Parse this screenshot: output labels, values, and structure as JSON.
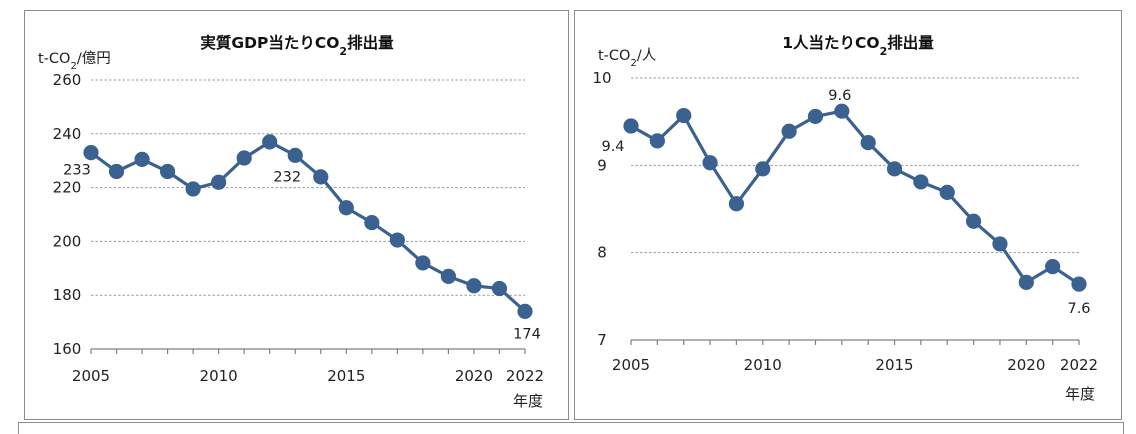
{
  "colors": {
    "series": "#3a618f",
    "grid": "#9a9a9a",
    "axis": "#7f7f7f"
  },
  "chart_data": [
    {
      "type": "line",
      "title_main": "実質GDP当たりCO",
      "title_sub": "2",
      "title_tail": "排出量",
      "unit_prefix": "t-CO",
      "unit_sub": "2",
      "unit_suffix": "/億円",
      "xlabel": "年度",
      "x": [
        2005,
        2006,
        2007,
        2008,
        2009,
        2010,
        2011,
        2012,
        2013,
        2014,
        2015,
        2016,
        2017,
        2018,
        2019,
        2020,
        2021,
        2022
      ],
      "values": [
        233,
        226,
        230.5,
        226,
        219.5,
        222,
        231,
        237,
        232,
        224,
        212.5,
        207,
        200.5,
        192,
        187,
        183.5,
        182.5,
        174
      ],
      "xticks": [
        "2005",
        "2010",
        "2015",
        "2020",
        "2022"
      ],
      "yticks": [
        "160",
        "180",
        "200",
        "220",
        "240",
        "260"
      ],
      "ylim": [
        160,
        260
      ],
      "grid": true,
      "annotations": [
        {
          "x": 2005,
          "text": "233"
        },
        {
          "x": 2013,
          "text": "232"
        },
        {
          "x": 2022,
          "text": "174"
        }
      ]
    },
    {
      "type": "line",
      "title_main": "1人当たりCO",
      "title_sub": "2",
      "title_tail": "排出量",
      "unit_prefix": "t-CO",
      "unit_sub": "2",
      "unit_suffix": "/人",
      "xlabel": "年度",
      "x": [
        2005,
        2006,
        2007,
        2008,
        2009,
        2010,
        2011,
        2012,
        2013,
        2014,
        2015,
        2016,
        2017,
        2018,
        2019,
        2020,
        2021,
        2022
      ],
      "values": [
        9.45,
        9.28,
        9.57,
        9.03,
        8.56,
        8.96,
        9.39,
        9.56,
        9.62,
        9.26,
        8.96,
        8.81,
        8.69,
        8.36,
        8.1,
        7.66,
        7.84,
        7.64
      ],
      "xticks": [
        "2005",
        "2010",
        "2015",
        "2020",
        "2022"
      ],
      "yticks": [
        "7",
        "8",
        "9",
        "10"
      ],
      "ylim": [
        7,
        10
      ],
      "grid": true,
      "annotations": [
        {
          "x": 2005,
          "text": "9.4"
        },
        {
          "x": 2013,
          "text": "9.6"
        },
        {
          "x": 2022,
          "text": "7.6"
        }
      ]
    }
  ]
}
